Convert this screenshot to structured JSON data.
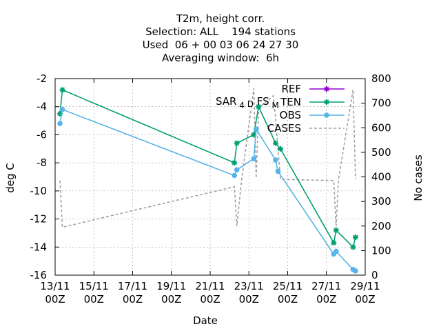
{
  "chart_data": {
    "type": "line",
    "title_lines": [
      "T2m, height corr.",
      "Selection: ALL    194 stations",
      "Used  06 + 00 03 06 24 27 30",
      "Averaging window:  6h"
    ],
    "xlabel": "Date",
    "ylabel": "deg C",
    "y2label": "No cases",
    "x_ticks": [
      "13/11\n00Z",
      "15/11\n00Z",
      "17/11\n00Z",
      "19/11\n00Z",
      "21/11\n00Z",
      "23/11\n00Z",
      "25/11\n00Z",
      "27/11\n00Z",
      "29/11\n00Z"
    ],
    "x_tick_days": [
      0,
      2,
      4,
      6,
      8,
      10,
      12,
      14,
      16
    ],
    "xlim_days": [
      0,
      16
    ],
    "ylim": [
      -16,
      -2
    ],
    "y_ticks": [
      -16,
      -14,
      -12,
      -10,
      -8,
      -6,
      -4,
      -2
    ],
    "y2lim": [
      0,
      800
    ],
    "y2_ticks": [
      0,
      100,
      200,
      300,
      400,
      500,
      600,
      700,
      800
    ],
    "grid": true,
    "legend_position": "top-right",
    "annotation": {
      "text": "SAR",
      "sub1": "4",
      "mid": "D",
      "mid2": "FS",
      "sub2": "M"
    },
    "series": [
      {
        "name": "REF",
        "axis": "y",
        "color": "#9400d3",
        "dash": "",
        "marker": "cross",
        "x": [],
        "y": []
      },
      {
        "name": "TEN",
        "axis": "y",
        "color": "#009e73",
        "dash": "",
        "marker": "cross",
        "x": [
          0.25,
          0.375,
          9.25,
          9.375,
          10.25,
          10.5,
          11.375,
          11.625,
          14.375,
          14.5,
          15.375,
          15.5
        ],
        "y": [
          -4.5,
          -2.8,
          -8.0,
          -6.6,
          -6.0,
          -4.0,
          -6.6,
          -7.0,
          -13.7,
          -12.8,
          -14.0,
          -13.3
        ]
      },
      {
        "name": "OBS",
        "axis": "y",
        "color": "#56b4e9",
        "dash": "",
        "marker": "circle",
        "x": [
          0.25,
          0.375,
          9.25,
          9.375,
          10.25,
          10.375,
          11.375,
          11.5,
          14.375,
          14.5,
          15.375,
          15.5
        ],
        "y": [
          -5.2,
          -4.2,
          -8.9,
          -8.5,
          -7.7,
          -5.6,
          -7.8,
          -8.6,
          -14.5,
          -14.3,
          -15.6,
          -15.7
        ],
        "breaks": [
          {
            "x": [
              10.375,
              10.5
            ],
            "y": [
              -5.6,
              -5.7
            ]
          }
        ]
      },
      {
        "name": "CASES",
        "axis": "y2",
        "color": "#a0a0a0",
        "dash": "4,3",
        "marker": "none",
        "x": [
          0.25,
          0.375,
          9.25,
          9.375,
          9.625,
          10.25,
          10.375,
          10.5,
          11.25,
          11.375,
          11.625,
          14.375,
          14.5,
          14.625,
          15.375,
          15.5
        ],
        "y": [
          385,
          195,
          360,
          200,
          390,
          760,
          395,
          680,
          730,
          640,
          390,
          385,
          200,
          390,
          755,
          390
        ]
      }
    ]
  }
}
